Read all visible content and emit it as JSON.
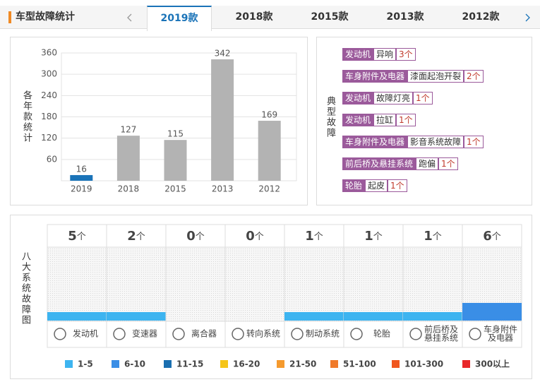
{
  "header": {
    "title": "车型故障统计",
    "tabs": [
      "2019款",
      "2018款",
      "2015款",
      "2013款",
      "2012款"
    ],
    "active_tab": 0
  },
  "chart_data": {
    "type": "bar",
    "y_label": "各年款统计",
    "categories": [
      "2019",
      "2018",
      "2015",
      "2013",
      "2012"
    ],
    "values": [
      16,
      127,
      115,
      342,
      169
    ],
    "colors": [
      "#1a73b8",
      "#b3b3b3",
      "#b3b3b3",
      "#b3b3b3",
      "#b3b3b3"
    ],
    "ylim": [
      0,
      360
    ],
    "yticks": [
      60,
      120,
      180,
      240,
      300,
      360
    ],
    "grid": true
  },
  "typical_faults": {
    "title": "典型故障",
    "rows": [
      {
        "system": "发动机",
        "fault": "异响",
        "count": "3个"
      },
      {
        "system": "车身附件及电器",
        "fault": "漆面起泡开裂",
        "count": "2个"
      },
      {
        "system": "发动机",
        "fault": "故障灯亮",
        "count": "1个"
      },
      {
        "system": "发动机",
        "fault": "拉缸",
        "count": "1个"
      },
      {
        "system": "车身附件及电器",
        "fault": "影音系统故障",
        "count": "1个"
      },
      {
        "system": "前后桥及悬挂系统",
        "fault": "跑偏",
        "count": "1个"
      },
      {
        "system": "轮胎",
        "fault": "起皮",
        "count": "1个"
      }
    ]
  },
  "systems": {
    "title": "八大系统故障图",
    "unit": "个",
    "items": [
      {
        "name": [
          "发动机"
        ],
        "count": 5,
        "color": "#3db4f0"
      },
      {
        "name": [
          "变速器"
        ],
        "count": 2,
        "color": "#3db4f0"
      },
      {
        "name": [
          "离合器"
        ],
        "count": 0
      },
      {
        "name": [
          "转向系统"
        ],
        "count": 0
      },
      {
        "name": [
          "制动系统"
        ],
        "count": 1,
        "color": "#3db4f0"
      },
      {
        "name": [
          "轮胎"
        ],
        "count": 1,
        "color": "#3db4f0"
      },
      {
        "name": [
          "前后桥及",
          "悬挂系统"
        ],
        "count": 1,
        "color": "#3db4f0"
      },
      {
        "name": [
          "车身附件",
          "及电器"
        ],
        "count": 6,
        "color": "#3a8ee6"
      }
    ],
    "legend": [
      {
        "label": "1-5",
        "color": "#3db4f0"
      },
      {
        "label": "6-10",
        "color": "#3a8ee6"
      },
      {
        "label": "11-15",
        "color": "#1a6fb0"
      },
      {
        "label": "16-20",
        "color": "#f5c518"
      },
      {
        "label": "21-50",
        "color": "#f59a2e"
      },
      {
        "label": "51-100",
        "color": "#f07a2a"
      },
      {
        "label": "101-300",
        "color": "#f0561e"
      },
      {
        "label": "300以上",
        "color": "#e8282a"
      }
    ]
  }
}
